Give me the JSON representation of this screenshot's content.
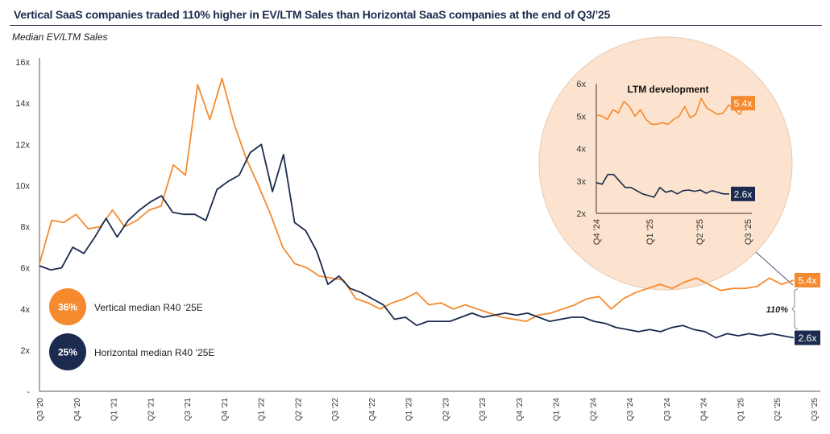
{
  "title": "Vertical SaaS companies traded 110% higher in EV/LTM Sales than Horizontal SaaS companies at the end of Q3/’25",
  "subtitle": "Median EV/LTM Sales",
  "colors": {
    "vertical": "#f58a2e",
    "horizontal": "#1b2a4e",
    "inset_bg": "#fbe3cf",
    "axis": "#555555"
  },
  "chart_data": [
    {
      "type": "line",
      "ylabel": "Median EV/LTM Sales",
      "ylim": [
        0,
        16
      ],
      "y_ticks": [
        "-",
        "2x",
        "4x",
        "6x",
        "8x",
        "10x",
        "12x",
        "14x",
        "16x"
      ],
      "x_ticks": [
        "Q3 '20",
        "Q4 '20",
        "Q1 '21",
        "Q2 '21",
        "Q3 '21",
        "Q4 '21",
        "Q1 '22",
        "Q2 '22",
        "Q3 '22",
        "Q4 '22",
        "Q1 '23",
        "Q2 '23",
        "Q3 '23",
        "Q4 '23",
        "Q1 '24",
        "Q2 '24",
        "Q3 '24",
        "Q3 '24",
        "Q4 '24",
        "Q1 '25",
        "Q2 '25",
        "Q3 '25"
      ],
      "x_range": [
        "2020-07",
        "2025-09"
      ],
      "grid": false,
      "series": [
        {
          "key": "vertical",
          "values": [
            6.2,
            8.3,
            8.2,
            8.6,
            7.9,
            8.0,
            8.8,
            8.0,
            8.3,
            8.8,
            9.0,
            11.0,
            10.5,
            14.9,
            13.2,
            15.2,
            13.0,
            11.3,
            10.0,
            8.6,
            7.0,
            6.2,
            6.0,
            5.6,
            5.5,
            5.4,
            4.5,
            4.3,
            4.0,
            4.3,
            4.5,
            4.8,
            4.2,
            4.3,
            4.0,
            4.2,
            4.0,
            3.8,
            3.6,
            3.5,
            3.4,
            3.7,
            3.8,
            4.0,
            4.2,
            4.5,
            4.6,
            4.0,
            4.5,
            4.8,
            5.0,
            5.2,
            5.0,
            5.3,
            5.5,
            5.2,
            4.9,
            5.0,
            5.0,
            5.1,
            5.5,
            5.2,
            5.4
          ]
        },
        {
          "key": "horizontal",
          "values": [
            6.1,
            5.9,
            6.0,
            7.0,
            6.7,
            7.5,
            8.4,
            7.5,
            8.3,
            8.8,
            9.2,
            9.5,
            8.7,
            8.6,
            8.6,
            8.3,
            9.8,
            10.2,
            10.5,
            11.6,
            12.0,
            9.7,
            11.5,
            8.2,
            7.8,
            6.8,
            5.2,
            5.6,
            5.0,
            4.8,
            4.5,
            4.2,
            3.5,
            3.6,
            3.2,
            3.4,
            3.4,
            3.4,
            3.6,
            3.8,
            3.6,
            3.7,
            3.8,
            3.7,
            3.8,
            3.6,
            3.4,
            3.5,
            3.6,
            3.6,
            3.4,
            3.3,
            3.1,
            3.0,
            2.9,
            3.0,
            2.9,
            3.1,
            3.2,
            3.0,
            2.9,
            2.6,
            2.8,
            2.7,
            2.8,
            2.7,
            2.8,
            2.7,
            2.6
          ]
        }
      ],
      "end_labels": {
        "vertical": "5.4x",
        "horizontal": "2.6x"
      },
      "gap_label": "110%",
      "legend": [
        {
          "badge": "36%",
          "label": "Vertical median R40 ‘25E",
          "key": "vertical"
        },
        {
          "badge": "25%",
          "label": "Horizontal median R40 ‘25E",
          "key": "horizontal"
        }
      ],
      "legend_placement": "bottom-left"
    },
    {
      "type": "line",
      "title": "LTM development",
      "ylim": [
        2,
        6
      ],
      "y_ticks": [
        "2x",
        "3x",
        "4x",
        "5x",
        "6x"
      ],
      "x_ticks": [
        "Q4 '24",
        "Q1 '25",
        "Q2 '25",
        "Q3 '25"
      ],
      "x_range": [
        "2024-10",
        "2025-09"
      ],
      "series": [
        {
          "key": "vertical",
          "values": [
            5.05,
            5.0,
            4.9,
            5.2,
            5.1,
            5.45,
            5.3,
            5.0,
            5.2,
            4.9,
            4.75,
            4.75,
            4.8,
            4.75,
            4.9,
            5.0,
            5.3,
            4.95,
            5.05,
            5.55,
            5.25,
            5.15,
            5.05,
            5.1,
            5.35,
            5.2,
            5.05,
            5.4
          ]
        },
        {
          "key": "horizontal",
          "values": [
            2.95,
            2.9,
            3.2,
            3.2,
            3.0,
            2.8,
            2.8,
            2.7,
            2.6,
            2.55,
            2.5,
            2.8,
            2.65,
            2.7,
            2.6,
            2.7,
            2.72,
            2.68,
            2.72,
            2.62,
            2.7,
            2.65,
            2.6,
            2.6
          ]
        }
      ],
      "end_labels": {
        "vertical": "5.4x",
        "horizontal": "2.6x"
      }
    }
  ]
}
